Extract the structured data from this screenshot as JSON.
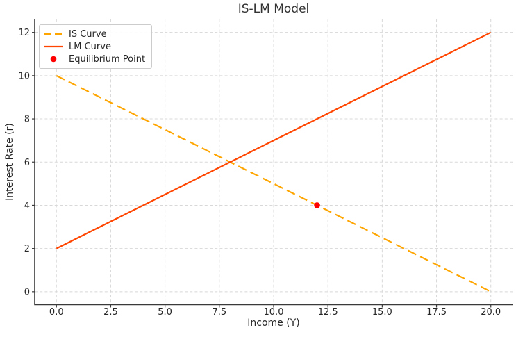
{
  "chart_data": {
    "type": "line",
    "title": "IS-LM Model",
    "xlabel": "Income (Y)",
    "ylabel": "Interest Rate (r)",
    "xlim": [
      -1,
      21
    ],
    "ylim": [
      -0.6,
      12.6
    ],
    "xticks": [
      0,
      2.5,
      5,
      7.5,
      10,
      12.5,
      15,
      17.5,
      20
    ],
    "xtick_labels": [
      "0.0",
      "2.5",
      "5.0",
      "7.5",
      "10.0",
      "12.5",
      "15.0",
      "17.5",
      "20.0"
    ],
    "yticks": [
      0,
      2,
      4,
      6,
      8,
      10,
      12
    ],
    "ytick_labels": [
      "0",
      "2",
      "4",
      "6",
      "8",
      "10",
      "12"
    ],
    "grid": true,
    "legend": {
      "position": "upper left",
      "entries": [
        "IS Curve",
        "LM Curve",
        "Equilibrium Point"
      ]
    },
    "series": [
      {
        "name": "IS Curve",
        "kind": "line",
        "linestyle": "dashed",
        "color": "#FFA500",
        "x": [
          0,
          20
        ],
        "y": [
          10,
          0
        ]
      },
      {
        "name": "LM Curve",
        "kind": "line",
        "linestyle": "solid",
        "color": "#FF4500",
        "x": [
          0,
          20
        ],
        "y": [
          2,
          12
        ]
      },
      {
        "name": "Equilibrium Point",
        "kind": "scatter",
        "color": "#FF0000",
        "x": [
          12
        ],
        "y": [
          4
        ]
      }
    ],
    "colors": {
      "grid": "#d8d8d8",
      "spine": "#3a3a3a",
      "text": "#262626",
      "background": "#ffffff"
    }
  }
}
